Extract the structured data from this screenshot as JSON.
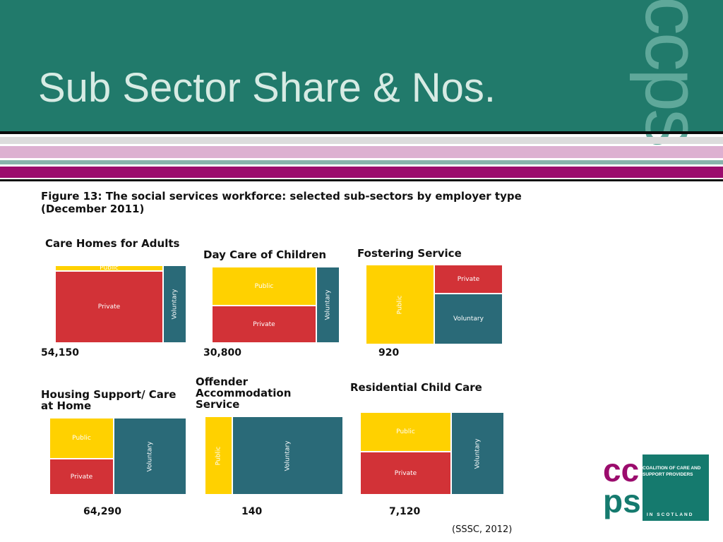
{
  "slide": {
    "title": "Sub Sector Share & Nos.",
    "watermark": "ccps",
    "source": "(SSSC, 2012)"
  },
  "colors": {
    "header_bg": "#217a6b",
    "stripe_purple": "#9b0c6d",
    "stripe_pink": "#ddb0d1",
    "public": "#ffd100",
    "private": "#d23237",
    "voluntary": "#2a6a78"
  },
  "logo": {
    "letters_top": "cc",
    "letters_bottom": "ps",
    "text_line1": "COALITION OF CARE AND",
    "text_line2": "SUPPORT PROVIDERS",
    "text_region": "IN SCOTLAND"
  },
  "chart_data": {
    "type": "treemap",
    "title": "Figure 13: The social services workforce: selected sub-sectors by employer type (December 2011)",
    "categories": [
      "Public",
      "Private",
      "Voluntary"
    ],
    "panels": [
      {
        "name": "Care Homes for Adults",
        "total": 54150,
        "total_label": "54,150",
        "segments": [
          {
            "label": "Public",
            "share": 0.06
          },
          {
            "label": "Private",
            "share": 0.76
          },
          {
            "label": "Voluntary",
            "share": 0.18
          }
        ]
      },
      {
        "name": "Day Care of Children",
        "total": 30800,
        "total_label": "30,800",
        "segments": [
          {
            "label": "Public",
            "share": 0.42
          },
          {
            "label": "Private",
            "share": 0.4
          },
          {
            "label": "Voluntary",
            "share": 0.18
          }
        ]
      },
      {
        "name": "Fostering Service",
        "total": 920,
        "total_label": "920",
        "segments": [
          {
            "label": "Public",
            "share": 0.5
          },
          {
            "label": "Private",
            "share": 0.18
          },
          {
            "label": "Voluntary",
            "share": 0.32
          }
        ]
      },
      {
        "name": "Housing Support/ Care at Home",
        "total": 64290,
        "total_label": "64,290",
        "segments": [
          {
            "label": "Public",
            "share": 0.25
          },
          {
            "label": "Private",
            "share": 0.22
          },
          {
            "label": "Voluntary",
            "share": 0.53
          }
        ]
      },
      {
        "name": "Offender Accommodation Service",
        "total": 140,
        "total_label": "140",
        "segments": [
          {
            "label": "Public",
            "share": 0.2
          },
          {
            "label": "Voluntary",
            "share": 0.8
          }
        ]
      },
      {
        "name": "Residential Child Care",
        "total": 7120,
        "total_label": "7,120",
        "segments": [
          {
            "label": "Public",
            "share": 0.3
          },
          {
            "label": "Private",
            "share": 0.33
          },
          {
            "label": "Voluntary",
            "share": 0.37
          }
        ]
      }
    ]
  }
}
